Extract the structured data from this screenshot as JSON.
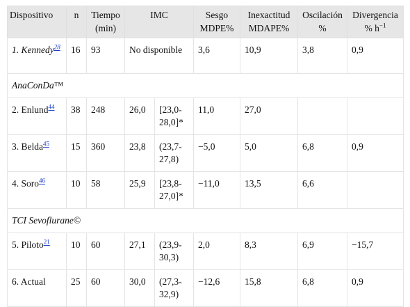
{
  "table": {
    "header": [
      {
        "lines": [
          "Dispositivo"
        ]
      },
      {
        "lines": [
          "n"
        ]
      },
      {
        "lines": [
          "Tiempo",
          "(min)"
        ]
      },
      {
        "lines": [
          "IMC"
        ]
      },
      {
        "lines": [
          "Sesgo",
          "MDPE%"
        ]
      },
      {
        "lines": [
          "Inexactitud",
          "MDAPE%"
        ]
      },
      {
        "lines": [
          "Oscilación",
          "%"
        ]
      },
      {
        "lines": [
          "Divergencia",
          "% h"
        ],
        "sup": "−1"
      }
    ],
    "rows": [
      {
        "num": "1.",
        "name": "Kennedy",
        "ref": "28",
        "italic": true,
        "n": "16",
        "tiempo": "93",
        "imc_na": "No disponible",
        "sesgo": "3,6",
        "inexactitud": "10,9",
        "oscilacion": "3,8",
        "divergencia": "0,9"
      },
      {
        "section": "AnaConDa™"
      },
      {
        "num": "2.",
        "name": "Enlund",
        "ref": "44",
        "n": "38",
        "tiempo": "248",
        "imc": "26,0",
        "imc_range": "[23,0-28,0]*",
        "sesgo": "11,0",
        "inexactitud": "27,0"
      },
      {
        "num": "3.",
        "name": "Belda",
        "ref": "45",
        "n": "15",
        "tiempo": "360",
        "imc": "23,8",
        "imc_range": "(23,7-27,8)",
        "sesgo": "−5,0",
        "inexactitud": "5,0",
        "oscilacion": "6,8",
        "divergencia": "0,9"
      },
      {
        "num": "4.",
        "name": "Soro",
        "ref": "46",
        "n": "10",
        "tiempo": "58",
        "imc": "25,9",
        "imc_range": "[23,8-27,0]*",
        "sesgo": "−11,0",
        "inexactitud": "13,5",
        "oscilacion": "6,6"
      },
      {
        "section": "TCI Sevoflurane©"
      },
      {
        "num": "5.",
        "name": "Piloto",
        "ref": "21",
        "n": "10",
        "tiempo": "60",
        "imc": "27,1",
        "imc_range": "(23,9-30,3)",
        "sesgo": "2,0",
        "inexactitud": "8,3",
        "oscilacion": "6,9",
        "divergencia": "−15,7"
      },
      {
        "num": "6.",
        "name": "Actual",
        "n": "25",
        "tiempo": "60",
        "imc": "30,0",
        "imc_range": "(27,3-32,9)",
        "sesgo": "−12,6",
        "inexactitud": "15,8",
        "oscilacion": "6,8",
        "divergencia": "0,9"
      }
    ]
  }
}
